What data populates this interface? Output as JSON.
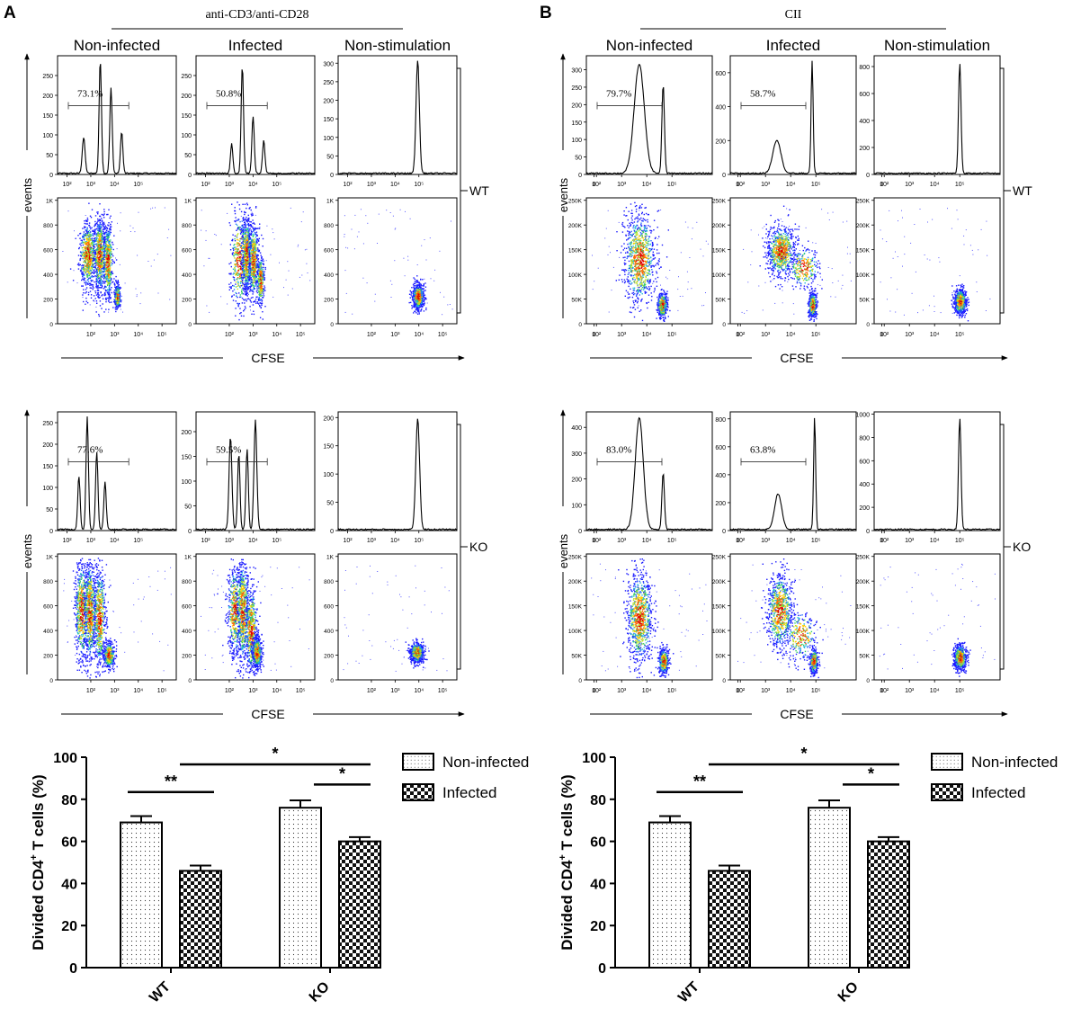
{
  "panels": [
    {
      "label": "A",
      "treatment": "anti-CD3/anti-CD28",
      "columns": [
        "Non-infected",
        "Infected",
        "Non-stimulation"
      ],
      "y_axis_label": "events",
      "x_axis_label": "CFSE",
      "histogram_x_ticks": [
        "0",
        "10²",
        "10³",
        "10⁴",
        "10⁵"
      ],
      "rows": [
        {
          "group": "WT",
          "histograms": [
            {
              "ymax": 300,
              "y_ticks": [
                "0",
                "50",
                "100",
                "150",
                "200",
                "250"
              ],
              "gate_pct": "73.1%",
              "peaks": [
                [
                  1.7,
                  0.3,
                  0.06
                ],
                [
                  2.4,
                  0.95,
                  0.05
                ],
                [
                  2.85,
                  0.72,
                  0.05
                ],
                [
                  3.3,
                  0.35,
                  0.05
                ]
              ]
            },
            {
              "ymax": 300,
              "y_ticks": [
                "0",
                "50",
                "100",
                "150",
                "200",
                "250"
              ],
              "gate_pct": "50.8%",
              "peaks": [
                [
                  2.1,
                  0.25,
                  0.05
                ],
                [
                  2.55,
                  0.9,
                  0.05
                ],
                [
                  3.0,
                  0.48,
                  0.05
                ],
                [
                  3.45,
                  0.28,
                  0.05
                ]
              ]
            },
            {
              "ymax": 320,
              "y_ticks": [
                "0",
                "50",
                "100",
                "150",
                "200",
                "250",
                "300"
              ],
              "gate_pct": "",
              "peaks": [
                [
                  3.95,
                  0.95,
                  0.07
                ]
              ]
            }
          ],
          "dot_y_ticks": [
            "0",
            "200",
            "400",
            "600",
            "800",
            "1K"
          ],
          "dot_x_ticks": [
            "10²",
            "10³",
            "10⁴",
            "10⁵"
          ]
        },
        {
          "group": "KO",
          "histograms": [
            {
              "ymax": 275,
              "y_ticks": [
                "0",
                "50",
                "100",
                "150",
                "200",
                "250"
              ],
              "gate_pct": "77.6%",
              "peaks": [
                [
                  1.5,
                  0.45,
                  0.05
                ],
                [
                  1.85,
                  0.95,
                  0.05
                ],
                [
                  2.25,
                  0.65,
                  0.05
                ],
                [
                  2.6,
                  0.4,
                  0.05
                ]
              ]
            },
            {
              "ymax": 240,
              "y_ticks": [
                "0",
                "50",
                "100",
                "150",
                "200"
              ],
              "gate_pct": "59.5%",
              "peaks": [
                [
                  2.05,
                  0.78,
                  0.06
                ],
                [
                  2.4,
                  0.64,
                  0.05
                ],
                [
                  2.75,
                  0.68,
                  0.05
                ],
                [
                  3.1,
                  0.92,
                  0.06
                ]
              ]
            },
            {
              "ymax": 210,
              "y_ticks": [
                "0",
                "50",
                "100",
                "150",
                "200"
              ],
              "gate_pct": "",
              "peaks": [
                [
                  3.95,
                  0.93,
                  0.08
                ]
              ]
            }
          ],
          "dot_y_ticks": [
            "0",
            "200",
            "400",
            "600",
            "800",
            "1K"
          ],
          "dot_x_ticks": [
            "10²",
            "10³",
            "10⁴",
            "10⁵"
          ]
        }
      ]
    },
    {
      "label": "B",
      "treatment": "CII",
      "columns": [
        "Non-infected",
        "Infected",
        "Non-stimulation"
      ],
      "y_axis_label": "events",
      "x_axis_label": "CFSE",
      "histogram_x_ticks": [
        "0",
        "10²",
        "10³",
        "10⁴",
        "10⁵"
      ],
      "rows": [
        {
          "group": "WT",
          "histograms": [
            {
              "ymax": 340,
              "y_ticks": [
                "0",
                "50",
                "100",
                "150",
                "200",
                "250",
                "300"
              ],
              "gate_pct": "79.7%",
              "peaks": [
                [
                  2.7,
                  0.92,
                  0.2
                ],
                [
                  3.65,
                  0.75,
                  0.05
                ]
              ]
            },
            {
              "ymax": 700,
              "y_ticks": [
                "0",
                "200",
                "400",
                "600"
              ],
              "gate_pct": "58.7%",
              "peaks": [
                [
                  2.45,
                  0.28,
                  0.16
                ],
                [
                  3.85,
                  0.95,
                  0.04
                ]
              ]
            },
            {
              "ymax": 880,
              "y_ticks": [
                "0",
                "200",
                "400",
                "600",
                "800"
              ],
              "gate_pct": "",
              "peaks": [
                [
                  4.0,
                  0.93,
                  0.05
                ]
              ]
            }
          ],
          "dot_y_ticks": [
            "0",
            "50K",
            "100K",
            "150K",
            "200K",
            "250K"
          ],
          "dot_x_ticks": [
            "0",
            "10²",
            "10³",
            "10⁴",
            "10⁵"
          ]
        },
        {
          "group": "KO",
          "histograms": [
            {
              "ymax": 460,
              "y_ticks": [
                "0",
                "100",
                "200",
                "300",
                "400"
              ],
              "gate_pct": "83.0%",
              "peaks": [
                [
                  2.7,
                  0.94,
                  0.16
                ],
                [
                  3.65,
                  0.48,
                  0.05
                ]
              ]
            },
            {
              "ymax": 850,
              "y_ticks": [
                "0",
                "200",
                "400",
                "600",
                "800"
              ],
              "gate_pct": "63.8%",
              "peaks": [
                [
                  2.5,
                  0.3,
                  0.14
                ],
                [
                  3.95,
                  0.95,
                  0.04
                ]
              ]
            },
            {
              "ymax": 1020,
              "y_ticks": [
                "0",
                "200",
                "400",
                "600",
                "800",
                "1000"
              ],
              "gate_pct": "",
              "peaks": [
                [
                  4.0,
                  0.94,
                  0.05
                ]
              ]
            }
          ],
          "dot_y_ticks": [
            "0",
            "50K",
            "100K",
            "150K",
            "200K",
            "250K"
          ],
          "dot_x_ticks": [
            "0",
            "10²",
            "10³",
            "10⁴",
            "10⁵"
          ]
        }
      ]
    }
  ],
  "chart_data": [
    {
      "type": "bar",
      "panel": "A",
      "categories": [
        "WT",
        "KO"
      ],
      "series": [
        {
          "name": "Non-infected",
          "values": [
            69,
            76
          ],
          "errors": [
            3,
            3.5
          ],
          "pattern": "dots"
        },
        {
          "name": "Infected",
          "values": [
            46,
            60
          ],
          "errors": [
            2.5,
            2
          ],
          "pattern": "checker"
        }
      ],
      "ylabel": "Divided CD4+ T cells (%)",
      "ylabel_main": "Divided CD4",
      "ylabel_sup": "+",
      "ylabel_rest": " T cells (%)",
      "ylim": [
        0,
        100
      ],
      "yticks": [
        "0",
        "20",
        "40",
        "60",
        "80",
        "100"
      ],
      "significance": [
        {
          "label": "**",
          "between": "WT Non-infected vs WT Infected"
        },
        {
          "label": "*",
          "between": "KO Non-infected vs KO Infected"
        },
        {
          "label": "*",
          "between": "WT Infected vs KO Infected"
        }
      ],
      "legend": "top-right"
    },
    {
      "type": "bar",
      "panel": "B",
      "categories": [
        "WT",
        "KO"
      ],
      "series": [
        {
          "name": "Non-infected",
          "values": [
            69,
            76
          ],
          "errors": [
            3,
            3.5
          ],
          "pattern": "dots"
        },
        {
          "name": "Infected",
          "values": [
            46,
            60
          ],
          "errors": [
            2.5,
            2
          ],
          "pattern": "checker"
        }
      ],
      "ylabel": "Divided CD4+ T cells (%)",
      "ylabel_main": "Divided CD4",
      "ylabel_sup": "+",
      "ylabel_rest": " T cells (%)",
      "ylim": [
        0,
        100
      ],
      "yticks": [
        "0",
        "20",
        "40",
        "60",
        "80",
        "100"
      ],
      "significance": [
        {
          "label": "**",
          "between": "WT Non-infected vs WT Infected"
        },
        {
          "label": "*",
          "between": "KO Non-infected vs KO Infected"
        },
        {
          "label": "*",
          "between": "WT Infected vs KO Infected"
        }
      ],
      "legend": "top-right"
    }
  ]
}
